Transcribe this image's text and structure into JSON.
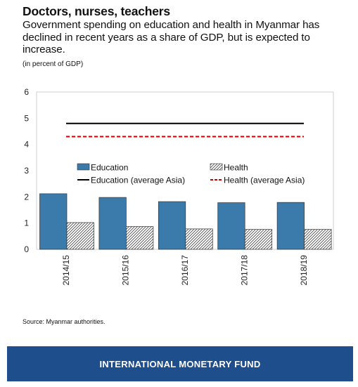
{
  "header": {
    "title": "Doctors, nurses, teachers",
    "subtitle": "Government spending on education and health in Myanmar has declined in recent years as a share of GDP, but is expected to increase.",
    "unit_note": "(in percent of GDP)"
  },
  "chart_data": {
    "type": "bar",
    "categories": [
      "2014/15",
      "2015/16",
      "2016/17",
      "2017/18",
      "2018/19"
    ],
    "series": [
      {
        "name": "Education",
        "kind": "bar",
        "color": "#3b7bab",
        "values": [
          2.12,
          1.98,
          1.82,
          1.78,
          1.79
        ]
      },
      {
        "name": "Health",
        "kind": "bar",
        "pattern": "diagonal-hatch",
        "values": [
          1.02,
          0.87,
          0.78,
          0.76,
          0.76
        ]
      },
      {
        "name": "Education (average Asia)",
        "kind": "line",
        "style": "solid",
        "color": "#000000",
        "value": 4.8
      },
      {
        "name": "Health (average Asia)",
        "kind": "line",
        "style": "dashed",
        "color": "#cc0000",
        "value": 4.3
      }
    ],
    "ylim": [
      0,
      6
    ],
    "yticks": [
      "0",
      "1",
      "2",
      "3",
      "4",
      "5",
      "6"
    ],
    "grid": false,
    "legend_position": "middle"
  },
  "source": "Source: Myanmar authorities.",
  "footer": {
    "label": "INTERNATIONAL MONETARY FUND",
    "color": "#1f4e8c"
  }
}
